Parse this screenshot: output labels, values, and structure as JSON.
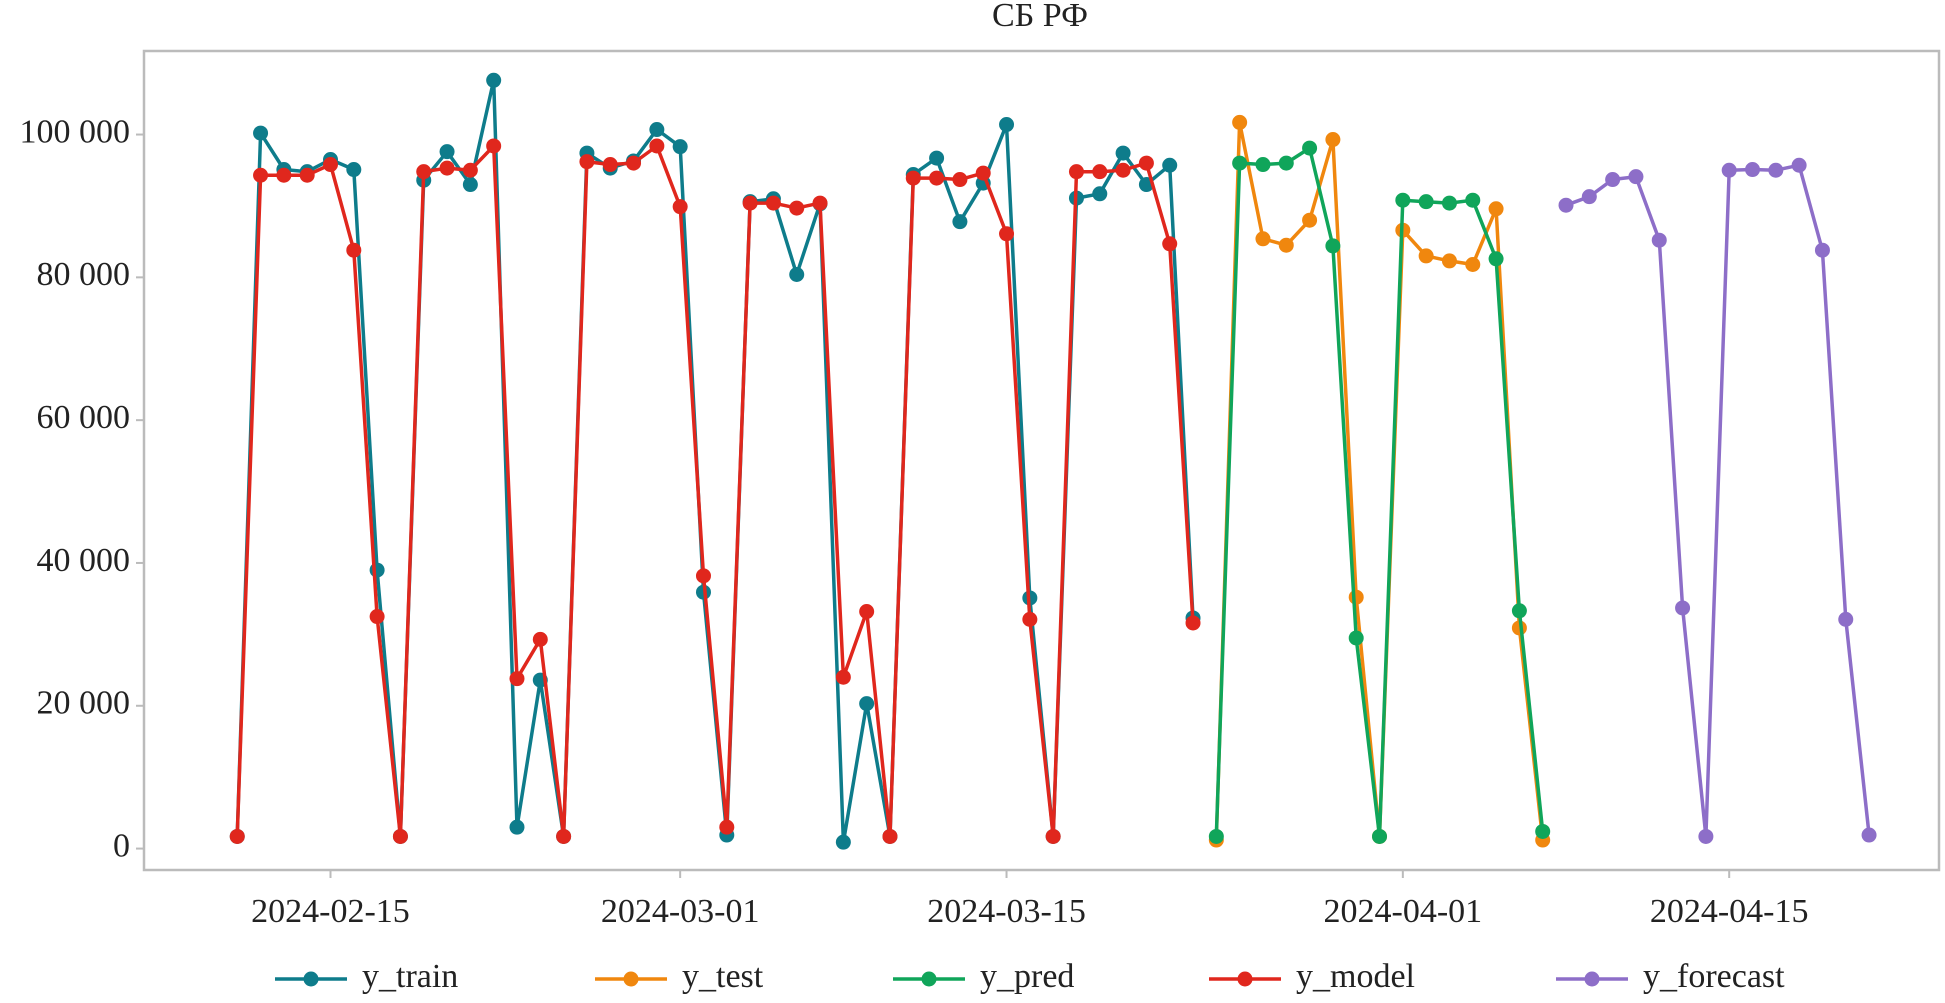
{
  "chart_data": {
    "type": "line",
    "title": "СБ РФ",
    "xlim": [
      "2024-02-07",
      "2024-04-24"
    ],
    "xticks": [
      "2024-02-15",
      "2024-03-01",
      "2024-03-15",
      "2024-04-01",
      "2024-04-15"
    ],
    "ylim": [
      -3000,
      111700
    ],
    "yticks": [
      0,
      {
        "value": 20000,
        "label": "20 000"
      },
      {
        "value": 40000,
        "label": "40 000"
      },
      {
        "value": 60000,
        "label": "60 000"
      },
      {
        "value": 80000,
        "label": "80 000"
      },
      {
        "value": 100000,
        "label": "100 000"
      }
    ],
    "legend": "bottom",
    "series": [
      {
        "name": "y_train",
        "color": "#0e7c8b",
        "x": [
          "2024-02-11",
          "2024-02-12",
          "2024-02-13",
          "2024-02-14",
          "2024-02-15",
          "2024-02-16",
          "2024-02-17",
          "2024-02-18",
          "2024-02-19",
          "2024-02-20",
          "2024-02-21",
          "2024-02-22",
          "2024-02-23",
          "2024-02-24",
          "2024-02-25",
          "2024-02-26",
          "2024-02-27",
          "2024-02-28",
          "2024-02-29",
          "2024-03-01",
          "2024-03-02",
          "2024-03-03",
          "2024-03-04",
          "2024-03-05",
          "2024-03-06",
          "2024-03-07",
          "2024-03-08",
          "2024-03-09",
          "2024-03-10",
          "2024-03-11",
          "2024-03-12",
          "2024-03-13",
          "2024-03-14",
          "2024-03-15",
          "2024-03-16",
          "2024-03-17",
          "2024-03-18",
          "2024-03-19",
          "2024-03-20",
          "2024-03-21",
          "2024-03-22",
          "2024-03-23"
        ],
        "values": [
          1700,
          100200,
          95100,
          94800,
          96500,
          95100,
          39000,
          1700,
          93600,
          97600,
          93000,
          107600,
          3000,
          23600,
          1700,
          97400,
          95300,
          96300,
          100700,
          98300,
          35900,
          1900,
          90600,
          91000,
          80400,
          90300,
          900,
          20300,
          1700,
          94400,
          96700,
          87800,
          93200,
          101400,
          35100,
          1700,
          91100,
          91700,
          97400,
          93000,
          95700,
          32300
        ]
      },
      {
        "name": "y_test",
        "color": "#f0870e",
        "x": [
          "2024-03-24",
          "2024-03-25",
          "2024-03-26",
          "2024-03-27",
          "2024-03-28",
          "2024-03-29",
          "2024-03-30",
          "2024-03-31",
          "2024-04-01",
          "2024-04-02",
          "2024-04-03",
          "2024-04-04",
          "2024-04-05",
          "2024-04-06",
          "2024-04-07"
        ],
        "values": [
          1200,
          101700,
          85400,
          84500,
          88000,
          99300,
          35200,
          1700,
          86600,
          83000,
          82300,
          81800,
          89600,
          30900,
          1200
        ]
      },
      {
        "name": "y_pred",
        "color": "#10a55a",
        "x": [
          "2024-03-24",
          "2024-03-25",
          "2024-03-26",
          "2024-03-27",
          "2024-03-28",
          "2024-03-29",
          "2024-03-30",
          "2024-03-31",
          "2024-04-01",
          "2024-04-02",
          "2024-04-03",
          "2024-04-04",
          "2024-04-05",
          "2024-04-06",
          "2024-04-07"
        ],
        "values": [
          1700,
          96000,
          95800,
          96000,
          98100,
          84400,
          29500,
          1700,
          90800,
          90600,
          90400,
          90800,
          82600,
          33300,
          2400
        ]
      },
      {
        "name": "y_model",
        "color": "#e0271d",
        "x": [
          "2024-02-11",
          "2024-02-12",
          "2024-02-13",
          "2024-02-14",
          "2024-02-15",
          "2024-02-16",
          "2024-02-17",
          "2024-02-18",
          "2024-02-19",
          "2024-02-20",
          "2024-02-21",
          "2024-02-22",
          "2024-02-23",
          "2024-02-24",
          "2024-02-25",
          "2024-02-26",
          "2024-02-27",
          "2024-02-28",
          "2024-02-29",
          "2024-03-01",
          "2024-03-02",
          "2024-03-03",
          "2024-03-04",
          "2024-03-05",
          "2024-03-06",
          "2024-03-07",
          "2024-03-08",
          "2024-03-09",
          "2024-03-10",
          "2024-03-11",
          "2024-03-12",
          "2024-03-13",
          "2024-03-14",
          "2024-03-15",
          "2024-03-16",
          "2024-03-17",
          "2024-03-18",
          "2024-03-19",
          "2024-03-20",
          "2024-03-21",
          "2024-03-22",
          "2024-03-23"
        ],
        "values": [
          1700,
          94300,
          94300,
          94300,
          95800,
          83800,
          32500,
          1700,
          94800,
          95300,
          95000,
          98400,
          23800,
          29300,
          1700,
          96200,
          95800,
          96000,
          98400,
          89900,
          38200,
          3000,
          90400,
          90400,
          89700,
          90400,
          24000,
          33200,
          1700,
          93900,
          93900,
          93700,
          94600,
          86100,
          32100,
          1700,
          94800,
          94800,
          95000,
          96000,
          84700,
          31600
        ]
      },
      {
        "name": "y_forecast",
        "color": "#8d6ec8",
        "x": [
          "2024-04-08",
          "2024-04-09",
          "2024-04-10",
          "2024-04-11",
          "2024-04-12",
          "2024-04-13",
          "2024-04-14",
          "2024-04-15",
          "2024-04-16",
          "2024-04-17",
          "2024-04-18",
          "2024-04-19",
          "2024-04-20",
          "2024-04-21"
        ],
        "values": [
          90100,
          91300,
          93700,
          94100,
          85200,
          33700,
          1700,
          95000,
          95100,
          95000,
          95700,
          83800,
          32100,
          1900
        ]
      }
    ]
  }
}
